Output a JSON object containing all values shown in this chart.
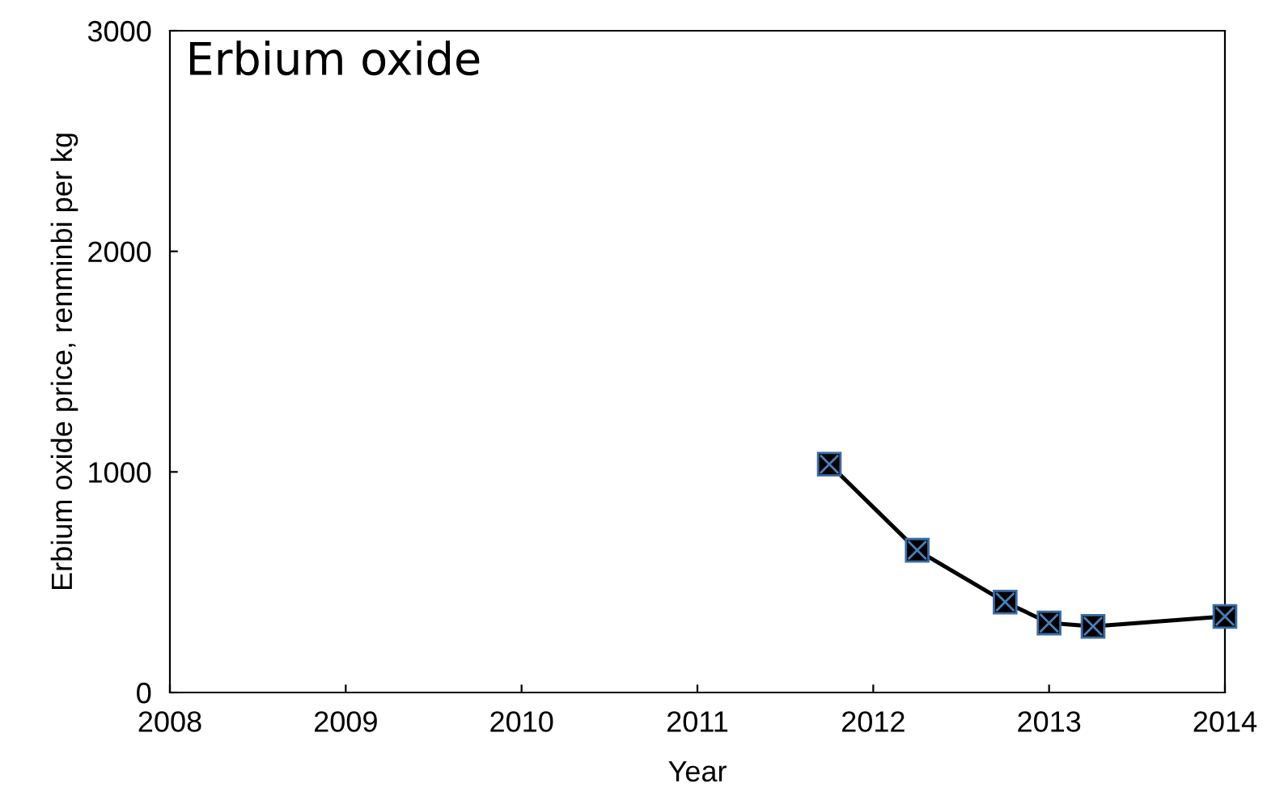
{
  "chart_data": {
    "type": "line",
    "title": "Erbium oxide",
    "xlabel": "Year",
    "ylabel": "Erbium oxide price, renminbi per kg",
    "x": [
      2011.75,
      2012.25,
      2012.75,
      2013.0,
      2013.25,
      2014.0
    ],
    "series": [
      {
        "color": "#000000",
        "values": [
          1035,
          645,
          410,
          315,
          300,
          345
        ]
      }
    ],
    "xlim": [
      2008,
      2014
    ],
    "xticks": [
      2008,
      2009,
      2010,
      2011,
      2012,
      2013,
      2014
    ],
    "ylim": [
      0,
      3000
    ],
    "yticks": [
      0,
      1000,
      2000,
      3000
    ],
    "grid": false,
    "legend": false,
    "marker": "square",
    "line_style": "solid"
  }
}
